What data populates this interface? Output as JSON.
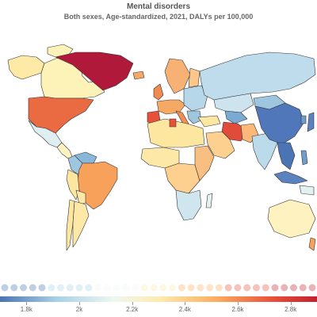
{
  "header": {
    "title": "Mental disorders",
    "subtitle": "Both sexes, Age-standardized, 2021, DALYs per 100,000"
  },
  "legend": {
    "tick_labels": [
      "1.8k",
      "2k",
      "2.2k",
      "2.4k",
      "2.6k",
      "2.8k"
    ],
    "tick_values": [
      1800,
      2000,
      2200,
      2400,
      2600,
      2800
    ],
    "range": [
      1700,
      2900
    ],
    "colors": [
      "#4a74b4",
      "#a9d1e6",
      "#eef7f1",
      "#fdebb0",
      "#fdae61",
      "#e9503a",
      "#c41f2f"
    ]
  },
  "colors": {
    "ocean": "#ffffff",
    "border": "#333333",
    "greenland": "#b0193a",
    "usa": "#ea6a42",
    "canada": "#fdf2b8",
    "alaska": "#fee9a6",
    "russia": "#bfdcec",
    "china": "#4f77b9",
    "brazil": "#f7a15a",
    "iran": "#e14b3a",
    "africa_mix": "#fde8a8"
  }
}
